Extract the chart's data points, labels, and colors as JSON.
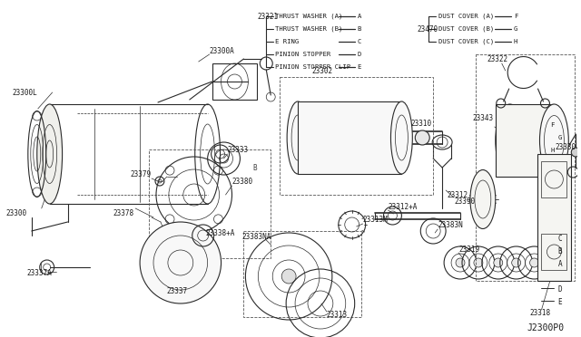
{
  "background_color": "#f5f5f0",
  "diagram_code": "J2300P0",
  "legend_left_ref": "23321",
  "legend_left_items": [
    [
      "THRUST WASHER (A)",
      "A"
    ],
    [
      "THRUST WASHER (B)",
      "B"
    ],
    [
      "E RING",
      "C"
    ],
    [
      "PINION STOPPER",
      "D"
    ],
    [
      "PINION STOPPER CLIP",
      "E"
    ]
  ],
  "legend_right_ref": "23470",
  "legend_right_items": [
    [
      "DUST COVER (A)",
      "F"
    ],
    [
      "DUST COVER (B)",
      "G"
    ],
    [
      "DUST COVER (C)",
      "H"
    ]
  ]
}
